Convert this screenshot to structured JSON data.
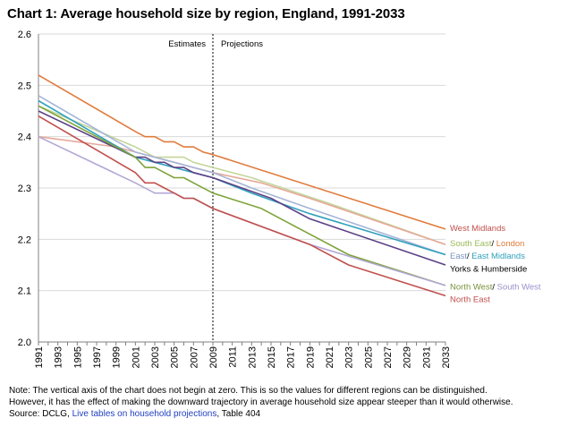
{
  "page": {
    "title": "Chart 1: Average household size by region, England, 1991-2033"
  },
  "chart_data": {
    "type": "line",
    "title": "Chart 1: Average household size by region, England, 1991-2033",
    "xlabel": "",
    "ylabel": "",
    "ylim": [
      2.0,
      2.6
    ],
    "yticks": [
      "2.0",
      "2.1",
      "2.2",
      "2.3",
      "2.4",
      "2.5",
      "2.6"
    ],
    "xticks": [
      "1991",
      "1993",
      "1995",
      "1997",
      "1999",
      "2001",
      "2003",
      "2005",
      "2007",
      "2009",
      "2011",
      "2013",
      "2015",
      "2017",
      "2019",
      "2021",
      "2023",
      "2025",
      "2027",
      "2029",
      "2031",
      "2033"
    ],
    "grid": "horizontal",
    "divider": {
      "x": 2009,
      "left_label": "Estimates",
      "right_label": "Projections"
    },
    "series": [
      {
        "id": "west-midlands",
        "color": "#e07b3c",
        "points": [
          [
            1991,
            2.52
          ],
          [
            2001,
            2.41
          ],
          [
            2002,
            2.4
          ],
          [
            2003,
            2.4
          ],
          [
            2004,
            2.39
          ],
          [
            2005,
            2.39
          ],
          [
            2006,
            2.38
          ],
          [
            2007,
            2.38
          ],
          [
            2008,
            2.37
          ],
          [
            2009,
            2.365
          ],
          [
            2033,
            2.22
          ]
        ]
      },
      {
        "id": "south-east",
        "color": "#c3d69b",
        "points": [
          [
            1991,
            2.46
          ],
          [
            2001,
            2.38
          ],
          [
            2003,
            2.36
          ],
          [
            2006,
            2.36
          ],
          [
            2007,
            2.35
          ],
          [
            2009,
            2.34
          ],
          [
            2013,
            2.32
          ],
          [
            2021,
            2.27
          ],
          [
            2033,
            2.19
          ]
        ]
      },
      {
        "id": "london",
        "color": "#e6a899",
        "points": [
          [
            1991,
            2.4
          ],
          [
            1999,
            2.38
          ],
          [
            2001,
            2.37
          ],
          [
            2003,
            2.36
          ],
          [
            2005,
            2.35
          ],
          [
            2007,
            2.34
          ],
          [
            2009,
            2.33
          ],
          [
            2014,
            2.31
          ],
          [
            2019,
            2.28
          ],
          [
            2033,
            2.19
          ]
        ]
      },
      {
        "id": "east",
        "color": "#a5b4d6",
        "points": [
          [
            1991,
            2.48
          ],
          [
            2001,
            2.37
          ],
          [
            2003,
            2.36
          ],
          [
            2005,
            2.35
          ],
          [
            2007,
            2.34
          ],
          [
            2009,
            2.33
          ],
          [
            2013,
            2.3
          ],
          [
            2019,
            2.26
          ],
          [
            2033,
            2.17
          ]
        ]
      },
      {
        "id": "east-midlands",
        "color": "#31a1bd",
        "points": [
          [
            1991,
            2.47
          ],
          [
            2001,
            2.36
          ],
          [
            2003,
            2.35
          ],
          [
            2005,
            2.34
          ],
          [
            2007,
            2.33
          ],
          [
            2009,
            2.32
          ],
          [
            2013,
            2.29
          ],
          [
            2019,
            2.25
          ],
          [
            2033,
            2.17
          ]
        ]
      },
      {
        "id": "yorks-humberside",
        "color": "#5b3f86",
        "points": [
          [
            1991,
            2.45
          ],
          [
            2001,
            2.36
          ],
          [
            2002,
            2.36
          ],
          [
            2003,
            2.35
          ],
          [
            2004,
            2.35
          ],
          [
            2005,
            2.34
          ],
          [
            2006,
            2.34
          ],
          [
            2007,
            2.33
          ],
          [
            2009,
            2.32
          ],
          [
            2015,
            2.28
          ],
          [
            2019,
            2.24
          ],
          [
            2033,
            2.15
          ]
        ]
      },
      {
        "id": "north-west",
        "color": "#7ea33a",
        "points": [
          [
            1991,
            2.46
          ],
          [
            2001,
            2.36
          ],
          [
            2002,
            2.34
          ],
          [
            2003,
            2.34
          ],
          [
            2004,
            2.33
          ],
          [
            2005,
            2.32
          ],
          [
            2006,
            2.32
          ],
          [
            2007,
            2.31
          ],
          [
            2009,
            2.29
          ],
          [
            2014,
            2.26
          ],
          [
            2019,
            2.21
          ],
          [
            2023,
            2.17
          ],
          [
            2033,
            2.11
          ]
        ]
      },
      {
        "id": "south-west",
        "color": "#b4a7d6",
        "points": [
          [
            1991,
            2.4
          ],
          [
            2001,
            2.31
          ],
          [
            2003,
            2.29
          ],
          [
            2005,
            2.29
          ],
          [
            2006,
            2.28
          ],
          [
            2007,
            2.28
          ],
          [
            2009,
            2.26
          ],
          [
            2019,
            2.19
          ],
          [
            2033,
            2.11
          ]
        ]
      },
      {
        "id": "north-east",
        "color": "#c0504d",
        "points": [
          [
            1991,
            2.44
          ],
          [
            2001,
            2.33
          ],
          [
            2002,
            2.31
          ],
          [
            2003,
            2.31
          ],
          [
            2004,
            2.3
          ],
          [
            2005,
            2.29
          ],
          [
            2006,
            2.28
          ],
          [
            2007,
            2.28
          ],
          [
            2009,
            2.26
          ],
          [
            2019,
            2.19
          ],
          [
            2023,
            2.15
          ],
          [
            2033,
            2.09
          ]
        ]
      }
    ],
    "labels": [
      {
        "id": "west-midlands",
        "y": 2.222,
        "parts": [
          {
            "text": "West Midlands",
            "color": "#c0504d"
          }
        ]
      },
      {
        "id": "south-east-london",
        "y": 2.193,
        "parts": [
          {
            "text": "South East",
            "color": "#9bbb59"
          },
          {
            "text": "/ ",
            "color": "#000000"
          },
          {
            "text": "London",
            "color": "#e07b3c"
          }
        ]
      },
      {
        "id": "east-east-midlands",
        "y": 2.168,
        "parts": [
          {
            "text": "East",
            "color": "#7f93c3"
          },
          {
            "text": "/ ",
            "color": "#000000"
          },
          {
            "text": "East Midlands",
            "color": "#31a1bd"
          }
        ]
      },
      {
        "id": "yorks-humberside",
        "y": 2.143,
        "parts": [
          {
            "text": "Yorks & Humberside",
            "color": "#000000"
          }
        ]
      },
      {
        "id": "north-west-south-west",
        "y": 2.108,
        "parts": [
          {
            "text": "North West",
            "color": "#77933c"
          },
          {
            "text": "/ ",
            "color": "#000000"
          },
          {
            "text": "South West",
            "color": "#9b8fc9"
          }
        ]
      },
      {
        "id": "north-east",
        "y": 2.084,
        "parts": [
          {
            "text": "North East",
            "color": "#c0504d"
          }
        ]
      }
    ]
  },
  "notes": {
    "line1": "Note: The vertical axis of the chart does not begin at zero. This is so the values for different regions can be distinguished.",
    "line2": "However, it has the effect of making the downward trajectory in average household size appear steeper than it would otherwise.",
    "source_prefix": "Source: DCLG, ",
    "source_link": "Live tables on household projections",
    "source_suffix": ", Table 404"
  }
}
